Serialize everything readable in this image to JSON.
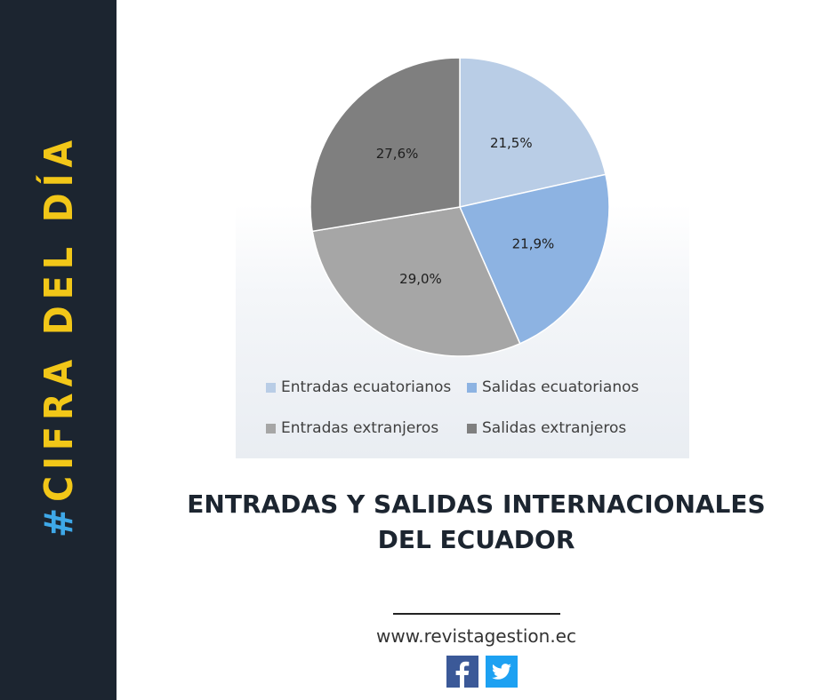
{
  "sidebar": {
    "hashtag": "#",
    "title": "CIFRA DEL DÍA"
  },
  "chart_data": {
    "type": "pie",
    "slices": [
      {
        "label": "Entradas ecuatorianos",
        "value": 21.5,
        "display": "21,5%",
        "color": "#b9cde6"
      },
      {
        "label": "Salidas ecuatorianos",
        "value": 21.9,
        "display": "21,9%",
        "color": "#8db3e2"
      },
      {
        "label": "Entradas extranjeros",
        "value": 29.0,
        "display": "29,0%",
        "color": "#a6a6a6"
      },
      {
        "label": "Salidas extranjeros",
        "value": 27.6,
        "display": "27,6%",
        "color": "#7f7f7f"
      }
    ],
    "legend_position": "bottom"
  },
  "headline": {
    "line1": "ENTRADAS Y SALIDAS INTERNACIONALES",
    "line2": "DEL ECUADOR"
  },
  "footer": {
    "website": "www.revistagestion.ec"
  },
  "social": [
    {
      "icon": "facebook-icon"
    },
    {
      "icon": "twitter-icon"
    }
  ]
}
